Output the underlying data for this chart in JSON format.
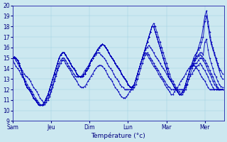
{
  "xlabel": "Température (°c)",
  "xlim": [
    0,
    132
  ],
  "ylim": [
    9,
    20
  ],
  "yticks": [
    9,
    10,
    11,
    12,
    13,
    14,
    15,
    16,
    17,
    18,
    19,
    20
  ],
  "xtick_positions": [
    0,
    24,
    48,
    72,
    96,
    120
  ],
  "xtick_labels": [
    "Sam",
    "Jeu",
    "Dim",
    "Lun",
    "Mar",
    "Mer"
  ],
  "background_color": "#cce8f0",
  "grid_color": "#99cce0",
  "line_color": "#0000bb",
  "marker": "+",
  "series": [
    [
      15.0,
      15.1,
      15.0,
      14.8,
      14.5,
      14.0,
      13.5,
      13.0,
      12.5,
      12.2,
      12.0,
      11.8,
      11.5,
      11.2,
      11.0,
      10.8,
      10.6,
      10.5,
      10.5,
      10.6,
      10.8,
      11.2,
      11.5,
      12.0,
      12.5,
      13.0,
      13.5,
      14.0,
      14.5,
      15.0,
      15.3,
      15.5,
      15.5,
      15.3,
      15.0,
      14.8,
      14.5,
      14.2,
      14.0,
      13.8,
      13.5,
      13.3,
      13.2,
      13.2,
      13.3,
      13.5,
      13.8,
      14.0,
      14.3,
      14.8,
      15.0,
      15.3,
      15.5,
      15.8,
      16.0,
      16.2,
      16.3,
      16.2,
      16.0,
      15.8,
      15.5,
      15.2,
      15.0,
      14.8,
      14.5,
      14.2,
      14.0,
      13.8,
      13.5,
      13.2,
      13.0,
      12.8,
      12.5,
      12.3,
      12.2,
      12.3,
      12.5,
      13.0,
      13.5,
      14.0,
      14.5,
      15.0,
      15.5,
      16.0,
      16.5,
      17.0,
      17.5,
      18.0,
      18.3,
      18.0,
      17.5,
      17.0,
      16.5,
      16.0,
      15.5,
      15.0,
      14.5,
      14.0,
      13.5,
      13.0,
      12.8,
      12.5,
      12.2,
      12.0,
      11.8,
      11.5,
      11.5,
      11.8,
      12.0,
      12.5,
      13.0,
      13.5,
      14.0,
      14.5,
      15.0,
      15.5,
      16.0,
      16.5,
      17.0,
      18.0,
      19.0,
      19.5,
      18.5,
      17.5,
      16.5,
      16.0,
      15.5,
      15.0,
      14.5,
      14.0,
      13.8,
      13.5
    ],
    [
      15.0,
      15.1,
      15.0,
      14.8,
      14.5,
      14.0,
      13.5,
      13.0,
      12.5,
      12.2,
      12.0,
      11.8,
      11.5,
      11.2,
      11.0,
      10.8,
      10.6,
      10.5,
      10.5,
      10.6,
      10.8,
      11.2,
      11.5,
      12.0,
      12.5,
      13.0,
      13.5,
      14.0,
      14.5,
      15.0,
      15.3,
      15.5,
      15.5,
      15.3,
      15.0,
      14.8,
      14.5,
      14.2,
      14.0,
      13.8,
      13.5,
      13.3,
      13.2,
      13.2,
      13.3,
      13.5,
      13.8,
      14.0,
      14.3,
      14.8,
      15.0,
      15.3,
      15.5,
      15.8,
      16.0,
      16.2,
      16.3,
      16.2,
      16.0,
      15.8,
      15.5,
      15.2,
      15.0,
      14.8,
      14.5,
      14.2,
      14.0,
      13.8,
      13.5,
      13.2,
      13.0,
      12.8,
      12.5,
      12.3,
      12.2,
      12.3,
      12.5,
      13.0,
      13.5,
      14.0,
      14.5,
      15.0,
      15.5,
      16.0,
      16.5,
      17.0,
      17.5,
      18.0,
      18.0,
      17.5,
      17.0,
      16.5,
      16.0,
      15.5,
      15.0,
      14.5,
      14.0,
      13.5,
      13.0,
      12.8,
      12.5,
      12.2,
      12.0,
      11.8,
      11.5,
      11.5,
      11.8,
      12.0,
      12.5,
      13.0,
      13.5,
      14.0,
      14.5,
      15.0,
      15.3,
      15.5,
      15.8,
      16.0,
      16.5,
      17.0,
      18.5,
      19.0,
      18.0,
      17.0,
      16.3,
      15.8,
      15.3,
      14.8,
      14.3,
      13.8,
      13.3,
      13.0
    ],
    [
      15.0,
      15.1,
      15.0,
      14.8,
      14.5,
      14.0,
      13.5,
      13.0,
      12.5,
      12.2,
      12.0,
      11.8,
      11.5,
      11.2,
      11.0,
      10.8,
      10.6,
      10.5,
      10.5,
      10.6,
      10.8,
      11.2,
      11.5,
      12.0,
      12.5,
      13.0,
      13.5,
      14.0,
      14.5,
      15.0,
      15.3,
      15.5,
      15.5,
      15.3,
      15.0,
      14.8,
      14.5,
      14.2,
      14.0,
      13.8,
      13.5,
      13.3,
      13.2,
      13.2,
      13.3,
      13.5,
      13.8,
      14.0,
      14.3,
      14.8,
      15.0,
      15.3,
      15.5,
      15.8,
      16.0,
      16.2,
      16.3,
      16.2,
      16.0,
      15.8,
      15.5,
      15.2,
      15.0,
      14.8,
      14.5,
      14.2,
      14.0,
      13.8,
      13.5,
      13.2,
      13.0,
      12.8,
      12.5,
      12.3,
      12.2,
      12.3,
      12.5,
      13.0,
      13.5,
      14.0,
      14.5,
      15.0,
      15.5,
      16.0,
      16.5,
      17.0,
      17.5,
      18.0,
      18.0,
      17.5,
      17.0,
      16.5,
      16.0,
      15.5,
      15.0,
      14.5,
      14.0,
      13.5,
      13.0,
      12.8,
      12.5,
      12.2,
      12.0,
      11.8,
      11.5,
      11.5,
      11.8,
      12.0,
      12.5,
      13.0,
      13.5,
      14.0,
      14.5,
      14.8,
      15.0,
      15.2,
      15.3,
      15.5,
      15.5,
      15.3,
      16.5,
      16.8,
      15.8,
      15.0,
      14.5,
      14.0,
      13.5,
      13.2,
      12.8,
      12.5,
      12.3,
      12.2
    ],
    [
      15.0,
      15.1,
      15.0,
      14.8,
      14.5,
      14.0,
      13.5,
      13.0,
      12.5,
      12.2,
      12.0,
      11.8,
      11.5,
      11.2,
      11.0,
      10.8,
      10.6,
      10.5,
      10.5,
      10.6,
      10.8,
      11.2,
      11.5,
      12.0,
      12.5,
      13.0,
      13.5,
      14.0,
      14.5,
      15.0,
      15.3,
      15.5,
      15.5,
      15.3,
      15.0,
      14.8,
      14.5,
      14.2,
      14.0,
      13.8,
      13.5,
      13.3,
      13.2,
      13.2,
      13.3,
      13.5,
      13.8,
      14.0,
      14.3,
      14.8,
      15.0,
      15.3,
      15.5,
      15.8,
      16.0,
      16.2,
      16.3,
      16.2,
      16.0,
      15.8,
      15.5,
      15.2,
      15.0,
      14.8,
      14.5,
      14.2,
      14.0,
      13.8,
      13.5,
      13.2,
      13.0,
      12.8,
      12.5,
      12.3,
      12.2,
      12.3,
      12.5,
      13.0,
      13.5,
      14.0,
      14.5,
      15.0,
      15.5,
      16.0,
      16.5,
      17.0,
      17.5,
      18.0,
      18.0,
      17.5,
      17.0,
      16.5,
      16.0,
      15.5,
      15.0,
      14.5,
      14.0,
      13.5,
      13.0,
      12.8,
      12.5,
      12.2,
      12.0,
      11.8,
      11.5,
      11.5,
      11.8,
      12.0,
      12.5,
      13.0,
      13.5,
      14.0,
      14.2,
      14.3,
      14.5,
      14.5,
      14.8,
      15.0,
      15.0,
      14.8,
      14.5,
      14.2,
      13.8,
      13.5,
      13.2,
      12.8,
      12.5,
      12.3,
      12.0,
      12.0,
      12.0,
      12.0
    ],
    [
      15.0,
      15.1,
      15.0,
      14.8,
      14.5,
      14.0,
      13.5,
      13.0,
      12.5,
      12.2,
      12.0,
      11.8,
      11.5,
      11.2,
      11.0,
      10.8,
      10.6,
      10.5,
      10.5,
      10.6,
      10.8,
      11.2,
      11.5,
      12.0,
      12.5,
      13.0,
      13.5,
      14.0,
      14.5,
      15.0,
      15.3,
      15.5,
      15.5,
      15.3,
      15.0,
      14.8,
      14.5,
      14.2,
      14.0,
      13.8,
      13.5,
      13.3,
      13.2,
      13.2,
      13.3,
      13.5,
      13.8,
      14.0,
      14.3,
      14.8,
      15.0,
      15.3,
      15.5,
      15.8,
      16.0,
      16.2,
      16.3,
      16.2,
      16.0,
      15.8,
      15.5,
      15.2,
      15.0,
      14.8,
      14.5,
      14.2,
      14.0,
      13.8,
      13.5,
      13.2,
      13.0,
      12.8,
      12.5,
      12.3,
      12.2,
      12.3,
      12.5,
      13.0,
      13.5,
      14.0,
      14.5,
      15.0,
      15.5,
      15.8,
      16.0,
      16.2,
      16.0,
      15.8,
      15.5,
      15.2,
      15.0,
      14.8,
      14.5,
      14.2,
      14.0,
      13.8,
      13.5,
      13.2,
      13.0,
      12.8,
      12.5,
      12.2,
      12.0,
      11.8,
      11.5,
      11.5,
      11.8,
      12.0,
      12.5,
      13.0,
      13.5,
      14.0,
      14.2,
      14.5,
      14.8,
      15.0,
      15.2,
      15.3,
      15.2,
      15.0,
      14.8,
      14.5,
      14.2,
      13.8,
      13.5,
      13.2,
      12.8,
      12.5,
      12.2,
      12.0,
      12.0,
      12.0
    ],
    [
      15.0,
      15.0,
      14.8,
      14.5,
      14.2,
      14.0,
      13.8,
      13.5,
      13.3,
      13.2,
      13.0,
      12.8,
      12.5,
      12.2,
      12.0,
      11.8,
      11.5,
      11.2,
      11.0,
      10.8,
      10.8,
      11.0,
      11.2,
      11.5,
      12.0,
      12.5,
      13.0,
      13.5,
      14.0,
      14.5,
      14.8,
      15.0,
      15.0,
      14.8,
      14.5,
      14.2,
      14.0,
      13.8,
      13.5,
      13.3,
      13.2,
      13.2,
      13.2,
      13.3,
      13.5,
      13.8,
      14.0,
      14.2,
      14.5,
      14.8,
      15.0,
      15.2,
      15.3,
      15.5,
      15.5,
      15.3,
      15.2,
      15.0,
      14.8,
      14.5,
      14.2,
      14.0,
      13.8,
      13.5,
      13.2,
      13.0,
      12.8,
      12.5,
      12.3,
      12.2,
      12.0,
      12.0,
      12.0,
      12.0,
      12.0,
      12.0,
      12.2,
      12.5,
      13.0,
      13.5,
      14.0,
      14.5,
      15.0,
      15.3,
      15.5,
      15.3,
      15.0,
      14.8,
      14.5,
      14.2,
      14.0,
      13.8,
      13.5,
      13.2,
      13.0,
      12.8,
      12.5,
      12.3,
      12.2,
      12.0,
      12.0,
      12.0,
      12.0,
      12.0,
      12.0,
      12.0,
      12.0,
      12.0,
      12.2,
      12.5,
      13.0,
      13.3,
      13.5,
      13.8,
      14.0,
      14.2,
      14.3,
      14.5,
      14.3,
      14.0,
      13.8,
      13.5,
      13.2,
      12.8,
      12.5,
      12.2,
      12.0,
      12.0,
      12.0,
      12.0,
      12.0,
      12.0
    ],
    [
      14.8,
      14.5,
      14.2,
      14.0,
      13.8,
      13.5,
      13.2,
      13.0,
      12.8,
      12.5,
      12.2,
      12.0,
      11.8,
      11.5,
      11.2,
      11.0,
      10.8,
      10.6,
      10.5,
      10.5,
      10.6,
      10.8,
      11.0,
      11.3,
      11.8,
      12.2,
      12.8,
      13.3,
      13.8,
      14.2,
      14.5,
      14.8,
      14.8,
      14.5,
      14.2,
      14.0,
      13.8,
      13.5,
      13.2,
      13.0,
      12.8,
      12.5,
      12.3,
      12.2,
      12.2,
      12.3,
      12.5,
      12.8,
      13.0,
      13.3,
      13.5,
      13.8,
      14.0,
      14.2,
      14.3,
      14.3,
      14.2,
      14.0,
      13.8,
      13.5,
      13.2,
      13.0,
      12.8,
      12.5,
      12.2,
      12.0,
      11.8,
      11.5,
      11.3,
      11.2,
      11.2,
      11.3,
      11.5,
      11.8,
      12.0,
      12.2,
      12.5,
      13.0,
      13.5,
      14.0,
      14.5,
      15.0,
      15.3,
      15.5,
      15.3,
      15.0,
      14.8,
      14.5,
      14.2,
      14.0,
      13.8,
      13.5,
      13.2,
      13.0,
      12.8,
      12.5,
      12.2,
      12.0,
      11.8,
      11.5,
      11.5,
      11.8,
      12.0,
      12.2,
      12.5,
      12.8,
      13.0,
      13.2,
      13.5,
      13.8,
      14.0,
      14.2,
      14.3,
      14.3,
      14.2,
      14.0,
      13.8,
      13.5,
      13.2,
      13.0,
      12.8,
      12.5,
      12.2,
      12.0,
      12.0,
      12.0,
      12.0,
      12.0,
      12.0,
      12.0,
      12.0,
      12.0
    ]
  ]
}
